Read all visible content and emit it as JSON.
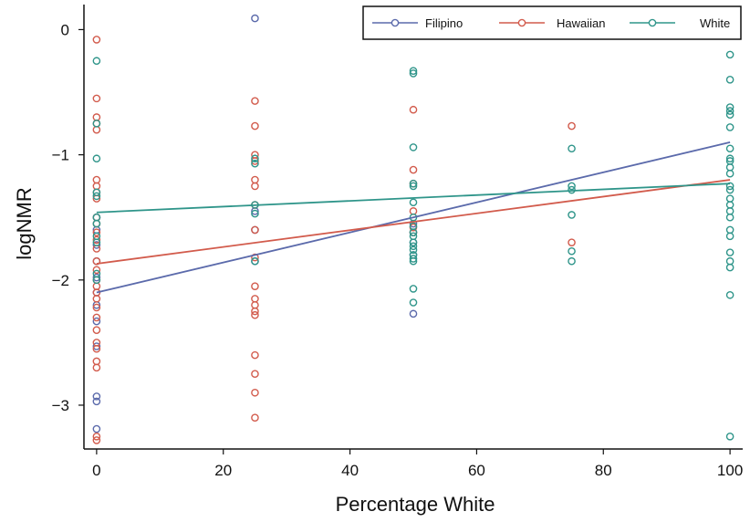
{
  "chart_data": {
    "type": "scatter",
    "title": "",
    "xlabel": "Percentage White",
    "ylabel": "logNMR",
    "xlim": [
      -2,
      102
    ],
    "ylim": [
      -3.35,
      0.2
    ],
    "xticks": [
      0,
      20,
      40,
      60,
      80,
      100
    ],
    "yticks": [
      0,
      -1,
      -2,
      -3
    ],
    "ytick_labels": [
      "0",
      "−1",
      "−2",
      "−3"
    ],
    "grid": false,
    "legend_position": "top-right",
    "series": [
      {
        "name": "Filipino",
        "color": "#5b6aab",
        "points": [
          [
            0,
            -1.5
          ],
          [
            0,
            -1.6
          ],
          [
            0,
            -1.72
          ],
          [
            0,
            -1.85
          ],
          [
            0,
            -1.98
          ],
          [
            0,
            -2.1
          ],
          [
            0,
            -2.2
          ],
          [
            0,
            -2.33
          ],
          [
            0,
            -2.53
          ],
          [
            0,
            -2.93
          ],
          [
            0,
            -2.97
          ],
          [
            0,
            -3.19
          ],
          [
            25,
            0.09
          ],
          [
            25,
            -1.45
          ],
          [
            25,
            -1.6
          ],
          [
            25,
            -1.85
          ],
          [
            50,
            -1.55
          ],
          [
            50,
            -1.62
          ],
          [
            50,
            -1.7
          ],
          [
            50,
            -1.8
          ],
          [
            50,
            -2.27
          ]
        ],
        "fit": [
          [
            0,
            -2.1
          ],
          [
            100,
            -0.9
          ]
        ]
      },
      {
        "name": "Hawaiian",
        "color": "#d25b4c",
        "points": [
          [
            0,
            -0.08
          ],
          [
            0,
            -0.55
          ],
          [
            0,
            -0.7
          ],
          [
            0,
            -0.75
          ],
          [
            0,
            -0.8
          ],
          [
            0,
            -1.2
          ],
          [
            0,
            -1.25
          ],
          [
            0,
            -1.3
          ],
          [
            0,
            -1.35
          ],
          [
            0,
            -1.5
          ],
          [
            0,
            -1.55
          ],
          [
            0,
            -1.62
          ],
          [
            0,
            -1.68
          ],
          [
            0,
            -1.75
          ],
          [
            0,
            -1.85
          ],
          [
            0,
            -1.92
          ],
          [
            0,
            -2.0
          ],
          [
            0,
            -2.05
          ],
          [
            0,
            -2.1
          ],
          [
            0,
            -2.15
          ],
          [
            0,
            -2.22
          ],
          [
            0,
            -2.3
          ],
          [
            0,
            -2.4
          ],
          [
            0,
            -2.5
          ],
          [
            0,
            -2.55
          ],
          [
            0,
            -2.65
          ],
          [
            0,
            -2.7
          ],
          [
            0,
            -3.25
          ],
          [
            0,
            -3.28
          ],
          [
            25,
            -0.57
          ],
          [
            25,
            -0.77
          ],
          [
            25,
            -1.0
          ],
          [
            25,
            -1.05
          ],
          [
            25,
            -1.2
          ],
          [
            25,
            -1.25
          ],
          [
            25,
            -1.4
          ],
          [
            25,
            -1.6
          ],
          [
            25,
            -1.82
          ],
          [
            25,
            -2.05
          ],
          [
            25,
            -2.15
          ],
          [
            25,
            -2.2
          ],
          [
            25,
            -2.25
          ],
          [
            25,
            -2.28
          ],
          [
            25,
            -2.6
          ],
          [
            25,
            -2.75
          ],
          [
            25,
            -2.9
          ],
          [
            25,
            -3.1
          ],
          [
            50,
            -0.64
          ],
          [
            50,
            -1.12
          ],
          [
            50,
            -1.23
          ],
          [
            50,
            -1.45
          ],
          [
            50,
            -1.58
          ],
          [
            50,
            -1.62
          ],
          [
            75,
            -0.77
          ],
          [
            75,
            -1.7
          ]
        ],
        "fit": [
          [
            0,
            -1.87
          ],
          [
            100,
            -1.2
          ]
        ]
      },
      {
        "name": "White",
        "color": "#2f958a",
        "points": [
          [
            0,
            -0.25
          ],
          [
            0,
            -0.75
          ],
          [
            0,
            -1.03
          ],
          [
            0,
            -1.3
          ],
          [
            0,
            -1.33
          ],
          [
            0,
            -1.5
          ],
          [
            0,
            -1.55
          ],
          [
            0,
            -1.65
          ],
          [
            0,
            -1.7
          ],
          [
            0,
            -1.95
          ],
          [
            0,
            -2.0
          ],
          [
            25,
            -1.03
          ],
          [
            25,
            -1.07
          ],
          [
            25,
            -1.4
          ],
          [
            25,
            -1.47
          ],
          [
            25,
            -1.85
          ],
          [
            50,
            -0.33
          ],
          [
            50,
            -0.35
          ],
          [
            50,
            -0.94
          ],
          [
            50,
            -1.23
          ],
          [
            50,
            -1.25
          ],
          [
            50,
            -1.38
          ],
          [
            50,
            -1.5
          ],
          [
            50,
            -1.57
          ],
          [
            50,
            -1.62
          ],
          [
            50,
            -1.65
          ],
          [
            50,
            -1.7
          ],
          [
            50,
            -1.73
          ],
          [
            50,
            -1.76
          ],
          [
            50,
            -1.8
          ],
          [
            50,
            -1.83
          ],
          [
            50,
            -1.85
          ],
          [
            50,
            -2.07
          ],
          [
            50,
            -2.18
          ],
          [
            75,
            -0.95
          ],
          [
            75,
            -1.25
          ],
          [
            75,
            -1.28
          ],
          [
            75,
            -1.48
          ],
          [
            75,
            -1.77
          ],
          [
            75,
            -1.85
          ],
          [
            100,
            -0.2
          ],
          [
            100,
            -0.4
          ],
          [
            100,
            -0.62
          ],
          [
            100,
            -0.65
          ],
          [
            100,
            -0.68
          ],
          [
            100,
            -0.78
          ],
          [
            100,
            -0.95
          ],
          [
            100,
            -1.03
          ],
          [
            100,
            -1.05
          ],
          [
            100,
            -1.1
          ],
          [
            100,
            -1.15
          ],
          [
            100,
            -1.25
          ],
          [
            100,
            -1.28
          ],
          [
            100,
            -1.35
          ],
          [
            100,
            -1.4
          ],
          [
            100,
            -1.45
          ],
          [
            100,
            -1.5
          ],
          [
            100,
            -1.6
          ],
          [
            100,
            -1.65
          ],
          [
            100,
            -1.78
          ],
          [
            100,
            -1.85
          ],
          [
            100,
            -1.9
          ],
          [
            100,
            -2.12
          ],
          [
            100,
            -3.25
          ]
        ],
        "fit": [
          [
            0,
            -1.46
          ],
          [
            100,
            -1.23
          ]
        ]
      }
    ]
  }
}
